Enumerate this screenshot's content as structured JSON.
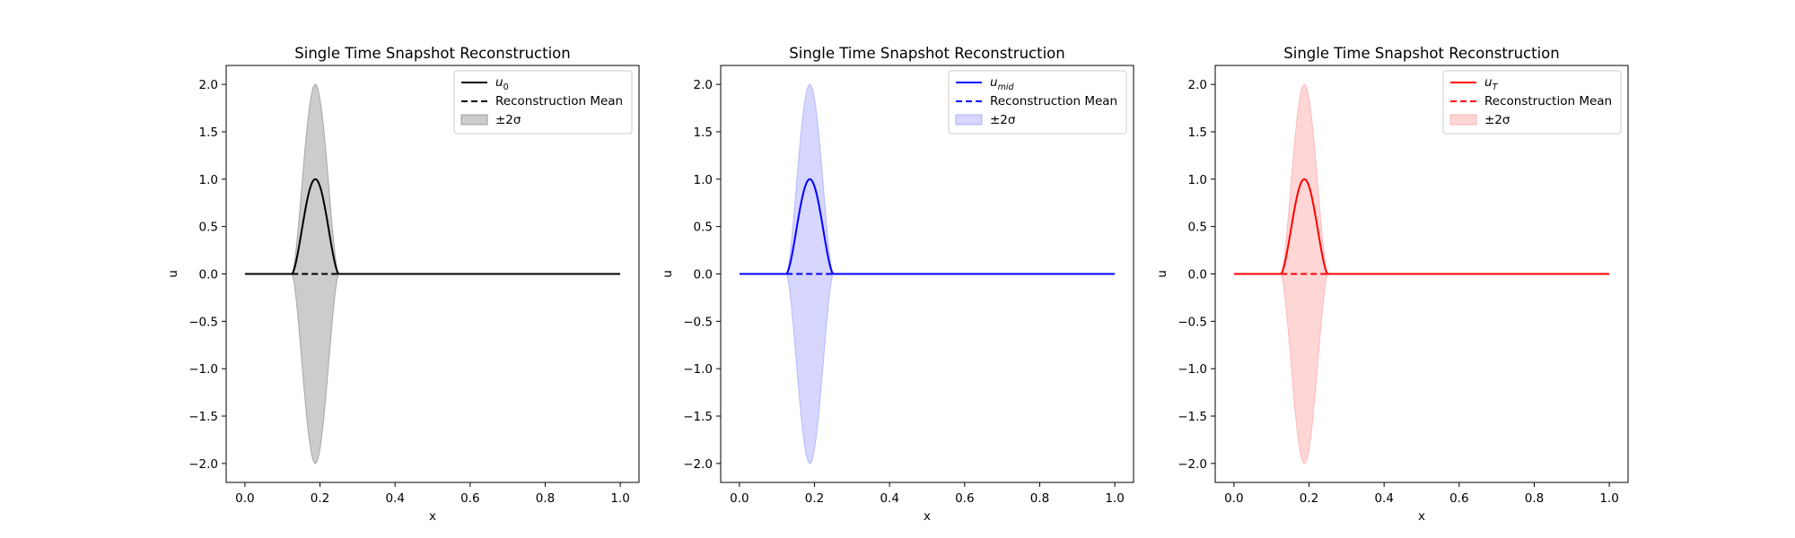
{
  "chart_data": [
    {
      "type": "line",
      "title": "Single Time Snapshot Reconstruction",
      "xlabel": "x",
      "ylabel": "u",
      "xlim": [
        -0.05,
        1.05
      ],
      "ylim": [
        -2.2,
        2.2
      ],
      "xticks": [
        "0.0",
        "0.2",
        "0.4",
        "0.6",
        "0.8",
        "1.0"
      ],
      "yticks": [
        "−2.0",
        "−1.5",
        "−1.0",
        "−0.5",
        "0.0",
        "0.5",
        "1.0",
        "1.5",
        "2.0"
      ],
      "grid": false,
      "legend_position": "top-right",
      "color": "#000000",
      "fill_color": "#808080",
      "pulse": {
        "start": 0.125,
        "end": 0.25,
        "peak_x": 0.1875,
        "peak": 1.0,
        "band_peak": 2.0
      },
      "series": [
        {
          "name": "u",
          "subscript": "0",
          "style": "solid",
          "x": [
            0.0,
            0.125,
            0.1875,
            0.25,
            1.0
          ],
          "y": [
            0.0,
            0.0,
            1.0,
            0.0,
            0.0
          ]
        },
        {
          "name": "Reconstruction Mean",
          "style": "dashed",
          "x": [
            0.0,
            1.0
          ],
          "y": [
            0.0,
            0.0
          ]
        },
        {
          "name": "±2σ",
          "style": "band",
          "x": [
            0.0,
            0.125,
            0.1875,
            0.25,
            1.0
          ],
          "lower": [
            0.0,
            0.0,
            -2.0,
            0.0,
            0.0
          ],
          "upper": [
            0.0,
            0.0,
            2.0,
            0.0,
            0.0
          ]
        }
      ]
    },
    {
      "type": "line",
      "title": "Single Time Snapshot Reconstruction",
      "xlabel": "x",
      "ylabel": "u",
      "xlim": [
        -0.05,
        1.05
      ],
      "ylim": [
        -2.2,
        2.2
      ],
      "xticks": [
        "0.0",
        "0.2",
        "0.4",
        "0.6",
        "0.8",
        "1.0"
      ],
      "yticks": [
        "−2.0",
        "−1.5",
        "−1.0",
        "−0.5",
        "0.0",
        "0.5",
        "1.0",
        "1.5",
        "2.0"
      ],
      "grid": false,
      "legend_position": "top-right",
      "color": "#0000ff",
      "fill_color": "#9999ff",
      "pulse": {
        "start": 0.125,
        "end": 0.25,
        "peak_x": 0.1875,
        "peak": 1.0,
        "band_peak": 2.0
      },
      "series": [
        {
          "name": "u",
          "subscript": "mid",
          "style": "solid",
          "x": [
            0.0,
            0.125,
            0.1875,
            0.25,
            1.0
          ],
          "y": [
            0.0,
            0.0,
            1.0,
            0.0,
            0.0
          ]
        },
        {
          "name": "Reconstruction Mean",
          "style": "dashed",
          "x": [
            0.0,
            1.0
          ],
          "y": [
            0.0,
            0.0
          ]
        },
        {
          "name": "±2σ",
          "style": "band",
          "x": [
            0.0,
            0.125,
            0.1875,
            0.25,
            1.0
          ],
          "lower": [
            0.0,
            0.0,
            -2.0,
            0.0,
            0.0
          ],
          "upper": [
            0.0,
            0.0,
            2.0,
            0.0,
            0.0
          ]
        }
      ]
    },
    {
      "type": "line",
      "title": "Single Time Snapshot Reconstruction",
      "xlabel": "x",
      "ylabel": "u",
      "xlim": [
        -0.05,
        1.05
      ],
      "ylim": [
        -2.2,
        2.2
      ],
      "xticks": [
        "0.0",
        "0.2",
        "0.4",
        "0.6",
        "0.8",
        "1.0"
      ],
      "yticks": [
        "−2.0",
        "−1.5",
        "−1.0",
        "−0.5",
        "0.0",
        "0.5",
        "1.0",
        "1.5",
        "2.0"
      ],
      "grid": false,
      "legend_position": "top-right",
      "color": "#ff0000",
      "fill_color": "#ff9999",
      "pulse": {
        "start": 0.125,
        "end": 0.25,
        "peak_x": 0.1875,
        "peak": 1.0,
        "band_peak": 2.0
      },
      "series": [
        {
          "name": "u",
          "subscript": "T",
          "style": "solid",
          "x": [
            0.0,
            0.125,
            0.1875,
            0.25,
            1.0
          ],
          "y": [
            0.0,
            0.0,
            1.0,
            0.0,
            0.0
          ]
        },
        {
          "name": "Reconstruction Mean",
          "style": "dashed",
          "x": [
            0.0,
            1.0
          ],
          "y": [
            0.0,
            0.0
          ]
        },
        {
          "name": "±2σ",
          "style": "band",
          "x": [
            0.0,
            0.125,
            0.1875,
            0.25,
            1.0
          ],
          "lower": [
            0.0,
            0.0,
            -2.0,
            0.0,
            0.0
          ],
          "upper": [
            0.0,
            0.0,
            2.0,
            0.0,
            0.0
          ]
        }
      ]
    }
  ]
}
